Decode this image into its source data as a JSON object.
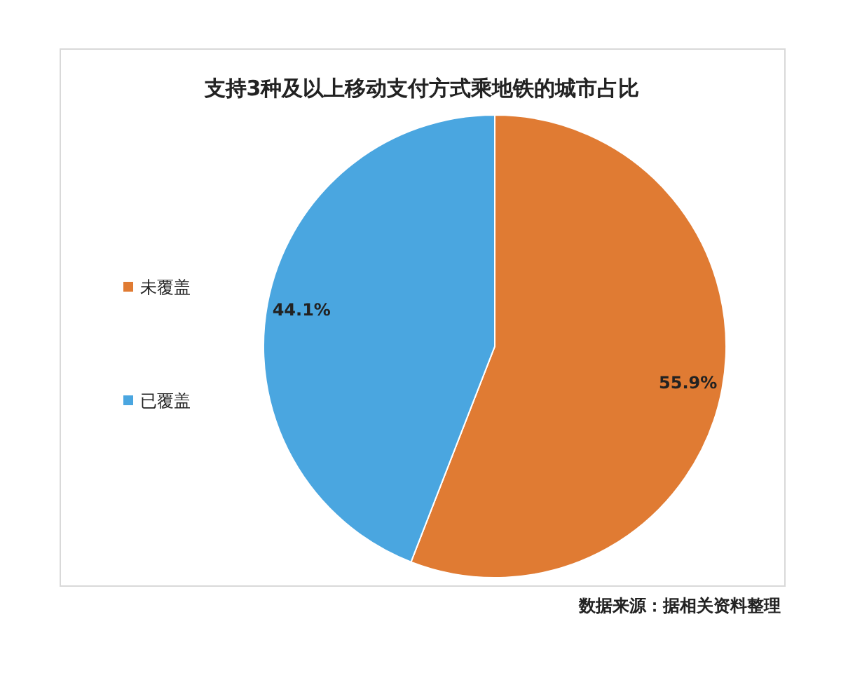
{
  "chart_data": {
    "type": "pie",
    "title": "支持3种及以上移动支付方式乘地铁的城市占比",
    "categories": [
      "未覆盖",
      "已覆盖"
    ],
    "values": [
      55.9,
      44.1
    ],
    "value_labels": [
      "55.9%",
      "44.1%"
    ],
    "colors": [
      "#e07b33",
      "#4aa6e0"
    ],
    "legend": "left",
    "annotations": [
      "数据来源：据相关资料整理"
    ]
  }
}
